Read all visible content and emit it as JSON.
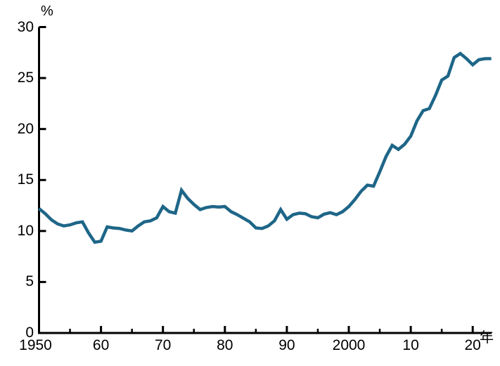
{
  "chart": {
    "percent_label": "%",
    "year_label": "年",
    "y_tick_labels": [
      "0",
      "5",
      "10",
      "15",
      "20",
      "25",
      "30"
    ],
    "y_tick_values": [
      0,
      5,
      10,
      15,
      20,
      25,
      30
    ],
    "x_tick_labels": [
      "1950",
      "60",
      "70",
      "80",
      "90",
      "2000",
      "10",
      "20"
    ],
    "x_tick_years": [
      1950,
      1960,
      1970,
      1980,
      1990,
      2000,
      2010,
      2020
    ],
    "minor_x_tick_years": [
      1955,
      1965,
      1975,
      1985,
      1995,
      2005,
      2015
    ],
    "axis_color": "#000000",
    "line_color": "#1e6688"
  },
  "chart_data": {
    "type": "line",
    "title": "",
    "xlabel": "年",
    "ylabel": "%",
    "ylim": [
      0,
      30
    ],
    "xlim": [
      1950,
      2024
    ],
    "grid": false,
    "legend_position": "none",
    "x": [
      1950,
      1951,
      1952,
      1953,
      1954,
      1955,
      1956,
      1957,
      1958,
      1959,
      1960,
      1961,
      1962,
      1963,
      1964,
      1965,
      1966,
      1967,
      1968,
      1969,
      1970,
      1971,
      1972,
      1973,
      1974,
      1975,
      1976,
      1977,
      1978,
      1979,
      1980,
      1981,
      1982,
      1983,
      1984,
      1985,
      1986,
      1987,
      1988,
      1989,
      1990,
      1991,
      1992,
      1993,
      1994,
      1995,
      1996,
      1997,
      1998,
      1999,
      2000,
      2001,
      2002,
      2003,
      2004,
      2005,
      2006,
      2007,
      2008,
      2009,
      2010,
      2011,
      2012,
      2013,
      2014,
      2015,
      2016,
      2017,
      2018,
      2019,
      2020,
      2021,
      2022,
      2023
    ],
    "values": [
      12.2,
      11.7,
      11.1,
      10.7,
      10.5,
      10.6,
      10.8,
      10.9,
      9.8,
      8.9,
      9.0,
      10.4,
      10.3,
      10.25,
      10.1,
      10.0,
      10.5,
      10.9,
      11.0,
      11.3,
      12.4,
      11.9,
      11.75,
      14.0,
      13.2,
      12.6,
      12.1,
      12.3,
      12.4,
      12.35,
      12.4,
      11.9,
      11.6,
      11.25,
      10.9,
      10.3,
      10.25,
      10.5,
      11.0,
      12.1,
      11.15,
      11.6,
      11.75,
      11.7,
      11.4,
      11.3,
      11.65,
      11.8,
      11.6,
      11.9,
      12.4,
      13.1,
      13.9,
      14.5,
      14.4,
      15.8,
      17.3,
      18.4,
      18.0,
      18.5,
      19.3,
      20.8,
      21.8,
      22.0,
      23.3,
      24.8,
      25.2,
      27.0,
      27.4,
      26.9,
      26.3,
      26.8,
      26.9,
      26.9
    ]
  }
}
